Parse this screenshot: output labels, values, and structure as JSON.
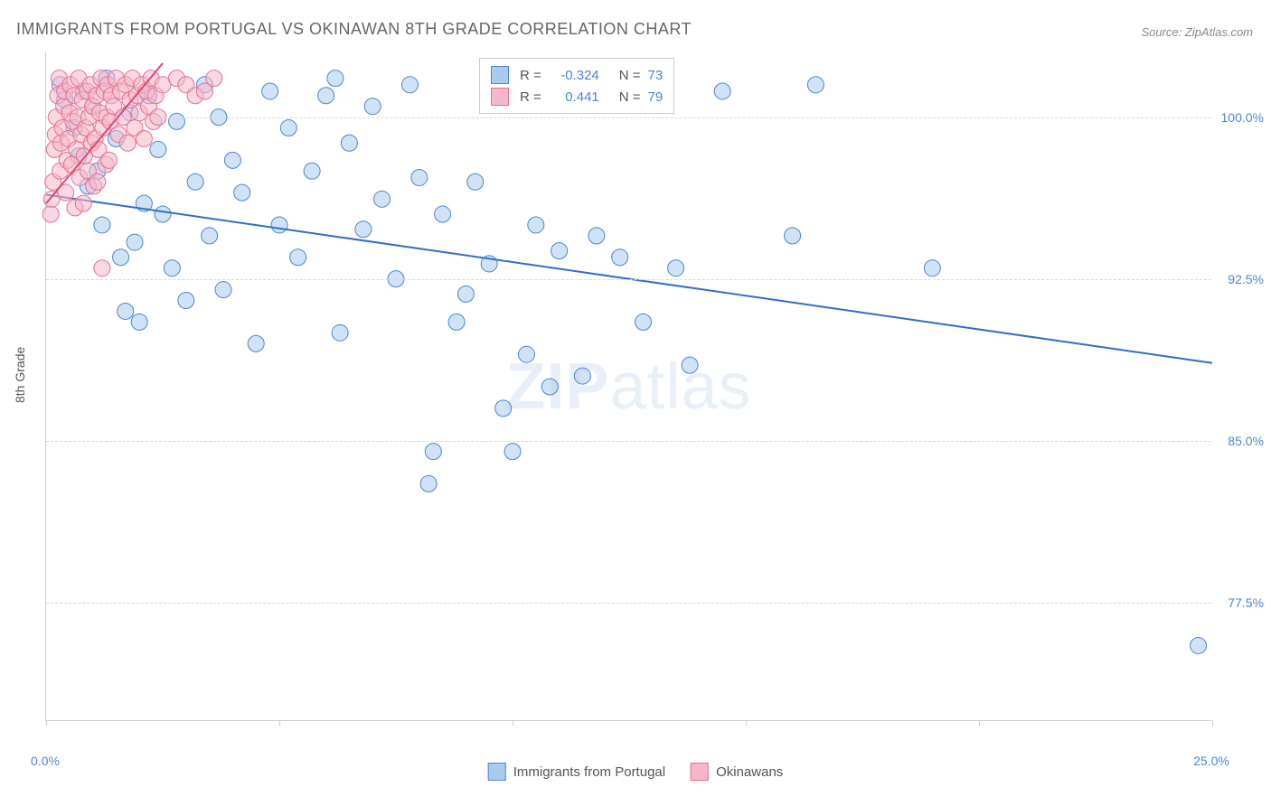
{
  "title": "IMMIGRANTS FROM PORTUGAL VS OKINAWAN 8TH GRADE CORRELATION CHART",
  "source_label": "Source: ZipAtlas.com",
  "watermark": {
    "bold": "ZIP",
    "light": "atlas"
  },
  "y_axis_label": "8th Grade",
  "chart": {
    "type": "scatter",
    "xlim": [
      0,
      25
    ],
    "ylim": [
      72,
      103
    ],
    "x_ticks": [
      0,
      5,
      10,
      15,
      20,
      25
    ],
    "x_tick_labels": {
      "0": "0.0%",
      "25": "25.0%"
    },
    "y_gridlines": [
      77.5,
      85.0,
      92.5,
      100.0
    ],
    "y_tick_labels": [
      "77.5%",
      "85.0%",
      "92.5%",
      "100.0%"
    ],
    "background_color": "#ffffff",
    "grid_color": "#d8d8d8",
    "axis_color": "#cccccc",
    "series": [
      {
        "name": "Immigrants from Portugal",
        "color_fill": "#a9cbee",
        "color_stroke": "#4a86d4",
        "marker_radius": 9,
        "fill_opacity": 0.55,
        "r": -0.324,
        "n": 73,
        "trend": {
          "x1": 0,
          "y1": 96.4,
          "x2": 25,
          "y2": 88.6,
          "stroke": "#2f6fc4",
          "width": 2
        },
        "points": [
          [
            0.3,
            101.5
          ],
          [
            0.4,
            100.8
          ],
          [
            0.6,
            99.5
          ],
          [
            0.7,
            98.2
          ],
          [
            0.8,
            101.2
          ],
          [
            0.9,
            96.8
          ],
          [
            1.0,
            100.5
          ],
          [
            1.1,
            97.5
          ],
          [
            1.2,
            95.0
          ],
          [
            1.3,
            101.8
          ],
          [
            1.5,
            99.0
          ],
          [
            1.6,
            93.5
          ],
          [
            1.7,
            91.0
          ],
          [
            1.8,
            100.2
          ],
          [
            1.9,
            94.2
          ],
          [
            2.0,
            90.5
          ],
          [
            2.1,
            96.0
          ],
          [
            2.2,
            101.0
          ],
          [
            2.4,
            98.5
          ],
          [
            2.5,
            95.5
          ],
          [
            2.7,
            93.0
          ],
          [
            2.8,
            99.8
          ],
          [
            3.0,
            91.5
          ],
          [
            3.2,
            97.0
          ],
          [
            3.4,
            101.5
          ],
          [
            3.5,
            94.5
          ],
          [
            3.7,
            100.0
          ],
          [
            3.8,
            92.0
          ],
          [
            4.0,
            98.0
          ],
          [
            4.2,
            96.5
          ],
          [
            4.5,
            89.5
          ],
          [
            4.8,
            101.2
          ],
          [
            5.0,
            95.0
          ],
          [
            5.2,
            99.5
          ],
          [
            5.4,
            93.5
          ],
          [
            5.7,
            97.5
          ],
          [
            6.0,
            101.0
          ],
          [
            6.3,
            90.0
          ],
          [
            6.5,
            98.8
          ],
          [
            6.8,
            94.8
          ],
          [
            7.0,
            100.5
          ],
          [
            7.2,
            96.2
          ],
          [
            7.5,
            92.5
          ],
          [
            7.8,
            101.5
          ],
          [
            8.0,
            97.2
          ],
          [
            8.2,
            83.0
          ],
          [
            8.3,
            84.5
          ],
          [
            8.5,
            95.5
          ],
          [
            8.8,
            90.5
          ],
          [
            9.0,
            91.8
          ],
          [
            9.2,
            97.0
          ],
          [
            9.5,
            93.2
          ],
          [
            9.8,
            86.5
          ],
          [
            10.0,
            84.5
          ],
          [
            10.3,
            89.0
          ],
          [
            10.5,
            95.0
          ],
          [
            10.8,
            87.5
          ],
          [
            11.0,
            93.8
          ],
          [
            11.3,
            101.0
          ],
          [
            11.5,
            88.0
          ],
          [
            11.8,
            94.5
          ],
          [
            12.3,
            93.5
          ],
          [
            12.8,
            90.5
          ],
          [
            13.0,
            101.5
          ],
          [
            13.2,
            101.0
          ],
          [
            13.5,
            93.0
          ],
          [
            13.8,
            88.5
          ],
          [
            14.5,
            101.2
          ],
          [
            16.0,
            94.5
          ],
          [
            16.5,
            101.5
          ],
          [
            19.0,
            93.0
          ],
          [
            24.7,
            75.5
          ],
          [
            6.2,
            101.8
          ]
        ]
      },
      {
        "name": "Okinawans",
        "color_fill": "#f4b8c8",
        "color_stroke": "#e86e94",
        "marker_radius": 9,
        "fill_opacity": 0.55,
        "r": 0.441,
        "n": 79,
        "trend": {
          "x1": 0,
          "y1": 96.0,
          "x2": 2.5,
          "y2": 102.5,
          "stroke": "#e04876",
          "width": 2
        },
        "points": [
          [
            0.1,
            95.5
          ],
          [
            0.12,
            96.2
          ],
          [
            0.15,
            97.0
          ],
          [
            0.18,
            98.5
          ],
          [
            0.2,
            99.2
          ],
          [
            0.22,
            100.0
          ],
          [
            0.25,
            101.0
          ],
          [
            0.28,
            101.8
          ],
          [
            0.3,
            97.5
          ],
          [
            0.32,
            98.8
          ],
          [
            0.35,
            99.5
          ],
          [
            0.38,
            100.5
          ],
          [
            0.4,
            101.2
          ],
          [
            0.42,
            96.5
          ],
          [
            0.45,
            98.0
          ],
          [
            0.48,
            99.0
          ],
          [
            0.5,
            100.2
          ],
          [
            0.52,
            101.5
          ],
          [
            0.55,
            97.8
          ],
          [
            0.58,
            99.8
          ],
          [
            0.6,
            101.0
          ],
          [
            0.62,
            95.8
          ],
          [
            0.65,
            98.5
          ],
          [
            0.68,
            100.0
          ],
          [
            0.7,
            101.8
          ],
          [
            0.72,
            97.2
          ],
          [
            0.75,
            99.2
          ],
          [
            0.78,
            100.8
          ],
          [
            0.8,
            96.0
          ],
          [
            0.82,
            98.2
          ],
          [
            0.85,
            99.5
          ],
          [
            0.88,
            101.2
          ],
          [
            0.9,
            97.5
          ],
          [
            0.92,
            100.0
          ],
          [
            0.95,
            101.5
          ],
          [
            0.98,
            98.8
          ],
          [
            1.0,
            100.5
          ],
          [
            1.02,
            96.8
          ],
          [
            1.05,
            99.0
          ],
          [
            1.08,
            101.0
          ],
          [
            1.1,
            97.0
          ],
          [
            1.12,
            98.5
          ],
          [
            1.15,
            100.2
          ],
          [
            1.18,
            101.8
          ],
          [
            1.2,
            93.0
          ],
          [
            1.22,
            99.5
          ],
          [
            1.25,
            101.2
          ],
          [
            1.28,
            97.8
          ],
          [
            1.3,
            100.0
          ],
          [
            1.32,
            101.5
          ],
          [
            1.35,
            98.0
          ],
          [
            1.38,
            99.8
          ],
          [
            1.4,
            101.0
          ],
          [
            1.45,
            100.5
          ],
          [
            1.5,
            101.8
          ],
          [
            1.55,
            99.2
          ],
          [
            1.6,
            101.2
          ],
          [
            1.65,
            100.0
          ],
          [
            1.7,
            101.5
          ],
          [
            1.75,
            98.8
          ],
          [
            1.8,
            100.8
          ],
          [
            1.85,
            101.8
          ],
          [
            1.9,
            99.5
          ],
          [
            1.95,
            101.0
          ],
          [
            2.0,
            100.2
          ],
          [
            2.05,
            101.5
          ],
          [
            2.1,
            99.0
          ],
          [
            2.15,
            101.2
          ],
          [
            2.2,
            100.5
          ],
          [
            2.25,
            101.8
          ],
          [
            2.3,
            99.8
          ],
          [
            2.35,
            101.0
          ],
          [
            2.4,
            100.0
          ],
          [
            2.5,
            101.5
          ],
          [
            2.8,
            101.8
          ],
          [
            3.0,
            101.5
          ],
          [
            3.2,
            101.0
          ],
          [
            3.4,
            101.2
          ],
          [
            3.6,
            101.8
          ]
        ]
      }
    ]
  },
  "legend_top": {
    "rows": [
      {
        "swatch_fill": "#a9cbee",
        "swatch_stroke": "#4a86d4",
        "r": "-0.324",
        "n": "73"
      },
      {
        "swatch_fill": "#f4b8c8",
        "swatch_stroke": "#e86e94",
        "r": "0.441",
        "n": "79"
      }
    ],
    "r_label": "R =",
    "n_label": "N ="
  },
  "legend_bottom": {
    "items": [
      {
        "swatch_fill": "#a9cbee",
        "swatch_stroke": "#4a86d4",
        "label": "Immigrants from Portugal"
      },
      {
        "swatch_fill": "#f4b8c8",
        "swatch_stroke": "#e86e94",
        "label": "Okinawans"
      }
    ]
  }
}
